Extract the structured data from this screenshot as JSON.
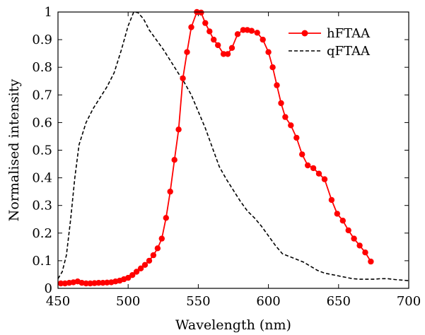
{
  "chart_data": {
    "type": "line",
    "xlabel": "Wavelength (nm)",
    "ylabel": "Normalised intensity",
    "xlim": [
      450,
      700
    ],
    "ylim": [
      0,
      1
    ],
    "x_ticks": [
      450,
      500,
      550,
      600,
      650,
      700
    ],
    "y_ticks": [
      0,
      0.1,
      0.2,
      0.3,
      0.4,
      0.5,
      0.6,
      0.7,
      0.8,
      0.9,
      1
    ],
    "grid": false,
    "legend_position": "top-right",
    "series": [
      {
        "name": "hFTAA",
        "style": "solid line with circle markers",
        "color": "#ff0000",
        "points": [
          [
            452,
            0.018
          ],
          [
            455,
            0.018
          ],
          [
            458,
            0.02
          ],
          [
            461,
            0.022
          ],
          [
            464,
            0.025
          ],
          [
            467,
            0.02
          ],
          [
            470,
            0.018
          ],
          [
            473,
            0.018
          ],
          [
            476,
            0.019
          ],
          [
            479,
            0.02
          ],
          [
            482,
            0.02
          ],
          [
            485,
            0.021
          ],
          [
            488,
            0.022
          ],
          [
            491,
            0.025
          ],
          [
            494,
            0.028
          ],
          [
            497,
            0.033
          ],
          [
            500,
            0.038
          ],
          [
            503,
            0.048
          ],
          [
            506,
            0.06
          ],
          [
            509,
            0.072
          ],
          [
            512,
            0.085
          ],
          [
            515,
            0.1
          ],
          [
            518,
            0.12
          ],
          [
            521,
            0.145
          ],
          [
            524,
            0.18
          ],
          [
            527,
            0.255
          ],
          [
            530,
            0.35
          ],
          [
            533,
            0.465
          ],
          [
            536,
            0.575
          ],
          [
            539,
            0.76
          ],
          [
            542,
            0.855
          ],
          [
            545,
            0.945
          ],
          [
            549,
            1.0
          ],
          [
            552,
            0.998
          ],
          [
            555,
            0.96
          ],
          [
            558,
            0.93
          ],
          [
            561,
            0.9
          ],
          [
            564,
            0.88
          ],
          [
            568,
            0.848
          ],
          [
            571,
            0.848
          ],
          [
            574,
            0.87
          ],
          [
            578,
            0.92
          ],
          [
            582,
            0.935
          ],
          [
            585,
            0.935
          ],
          [
            588,
            0.932
          ],
          [
            592,
            0.925
          ],
          [
            596,
            0.9
          ],
          [
            600,
            0.855
          ],
          [
            603,
            0.8
          ],
          [
            606,
            0.735
          ],
          [
            609,
            0.67
          ],
          [
            612,
            0.62
          ],
          [
            616,
            0.59
          ],
          [
            620,
            0.545
          ],
          [
            624,
            0.485
          ],
          [
            628,
            0.445
          ],
          [
            632,
            0.435
          ],
          [
            636,
            0.415
          ],
          [
            640,
            0.395
          ],
          [
            645,
            0.32
          ],
          [
            649,
            0.27
          ],
          [
            653,
            0.245
          ],
          [
            657,
            0.21
          ],
          [
            661,
            0.18
          ],
          [
            665,
            0.155
          ],
          [
            669,
            0.13
          ],
          [
            673,
            0.097
          ]
        ]
      },
      {
        "name": "qFTAA",
        "style": "dashed line",
        "color": "#000000",
        "points": [
          [
            450,
            0.035
          ],
          [
            453,
            0.06
          ],
          [
            456,
            0.12
          ],
          [
            459,
            0.25
          ],
          [
            462,
            0.4
          ],
          [
            465,
            0.52
          ],
          [
            470,
            0.6
          ],
          [
            475,
            0.65
          ],
          [
            480,
            0.69
          ],
          [
            485,
            0.73
          ],
          [
            490,
            0.78
          ],
          [
            495,
            0.86
          ],
          [
            500,
            0.95
          ],
          [
            504,
            1.0
          ],
          [
            507,
            0.998
          ],
          [
            511,
            0.975
          ],
          [
            515,
            0.935
          ],
          [
            520,
            0.9
          ],
          [
            525,
            0.865
          ],
          [
            530,
            0.825
          ],
          [
            535,
            0.785
          ],
          [
            540,
            0.745
          ],
          [
            545,
            0.7
          ],
          [
            550,
            0.64
          ],
          [
            555,
            0.58
          ],
          [
            560,
            0.51
          ],
          [
            565,
            0.44
          ],
          [
            570,
            0.395
          ],
          [
            575,
            0.355
          ],
          [
            580,
            0.315
          ],
          [
            585,
            0.28
          ],
          [
            590,
            0.255
          ],
          [
            595,
            0.225
          ],
          [
            600,
            0.19
          ],
          [
            605,
            0.155
          ],
          [
            610,
            0.125
          ],
          [
            615,
            0.115
          ],
          [
            620,
            0.105
          ],
          [
            625,
            0.095
          ],
          [
            630,
            0.08
          ],
          [
            635,
            0.065
          ],
          [
            640,
            0.055
          ],
          [
            645,
            0.05
          ],
          [
            650,
            0.045
          ],
          [
            655,
            0.04
          ],
          [
            660,
            0.035
          ],
          [
            665,
            0.033
          ],
          [
            670,
            0.033
          ],
          [
            675,
            0.033
          ],
          [
            680,
            0.035
          ],
          [
            685,
            0.035
          ],
          [
            690,
            0.032
          ],
          [
            695,
            0.03
          ],
          [
            700,
            0.028
          ]
        ]
      }
    ]
  }
}
